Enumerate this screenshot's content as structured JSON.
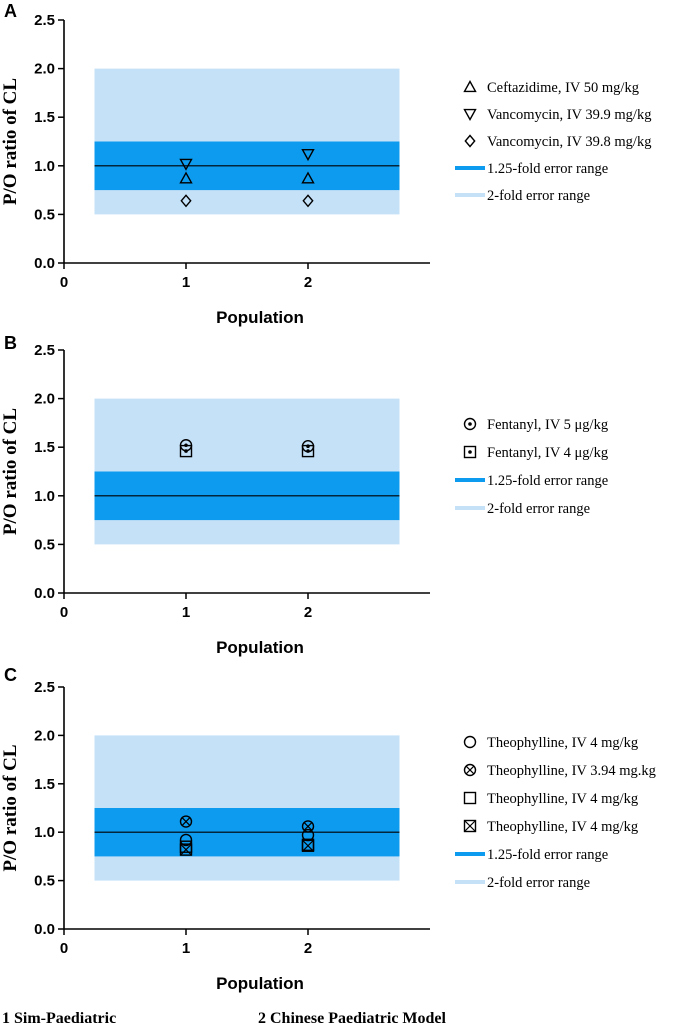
{
  "colors": {
    "two_fold": "#c5e1f8",
    "one25_fold": "#0d9bef",
    "axis": "#000000",
    "ref_line": "#000000"
  },
  "footnote": {
    "item1": "1 Sim-Paediatric",
    "item2": "2 Chinese Paediatric Model"
  },
  "chart_data": [
    {
      "panel": "A",
      "type": "scatter",
      "xlabel": "Population",
      "ylabel": "P/O ratio of CL",
      "xlim": [
        0,
        3
      ],
      "ylim": [
        0,
        2.5
      ],
      "x_ticks": [
        "0",
        "1",
        "2"
      ],
      "y_ticks": [
        "0.0",
        "0.5",
        "1.0",
        "1.5",
        "2.0",
        "2.5"
      ],
      "bands": {
        "two_fold": [
          0.5,
          2.0
        ],
        "one25_fold": [
          0.75,
          1.25
        ],
        "x_span": [
          0.25,
          2.75
        ]
      },
      "reference_line": 1.0,
      "series": [
        {
          "name": "Ceftazidime, IV 50 mg/kg",
          "marker": "triangle-up",
          "x": [
            1,
            2
          ],
          "y": [
            0.87,
            0.87
          ]
        },
        {
          "name": "Vancomycin, IV 39.9 mg/kg",
          "marker": "triangle-down",
          "x": [
            1,
            2
          ],
          "y": [
            1.02,
            1.12
          ]
        },
        {
          "name": "Vancomycin, IV 39.8 mg/kg",
          "marker": "diamond",
          "x": [
            1,
            2
          ],
          "y": [
            0.64,
            0.64
          ]
        }
      ],
      "legend_bands": [
        "1.25-fold error range",
        "2-fold error range"
      ]
    },
    {
      "panel": "B",
      "type": "scatter",
      "xlabel": "Population",
      "ylabel": "P/O ratio of CL",
      "xlim": [
        0,
        3
      ],
      "ylim": [
        0,
        2.5
      ],
      "x_ticks": [
        "0",
        "1",
        "2"
      ],
      "y_ticks": [
        "0.0",
        "0.5",
        "1.0",
        "1.5",
        "2.0",
        "2.5"
      ],
      "bands": {
        "two_fold": [
          0.5,
          2.0
        ],
        "one25_fold": [
          0.75,
          1.25
        ],
        "x_span": [
          0.25,
          2.75
        ]
      },
      "reference_line": 1.0,
      "series": [
        {
          "name": "Fentanyl, IV 5 μg/kg",
          "marker": "circle-dot",
          "x": [
            1,
            2
          ],
          "y": [
            1.52,
            1.51
          ]
        },
        {
          "name": "Fentanyl, IV 4 μg/kg",
          "marker": "square-dot",
          "x": [
            1,
            2
          ],
          "y": [
            1.46,
            1.46
          ]
        }
      ],
      "legend_bands": [
        "1.25-fold error range",
        "2-fold error range"
      ]
    },
    {
      "panel": "C",
      "type": "scatter",
      "xlabel": "Population",
      "ylabel": "P/O ratio of CL",
      "xlim": [
        0,
        3
      ],
      "ylim": [
        0,
        2.5
      ],
      "x_ticks": [
        "0",
        "1",
        "2"
      ],
      "y_ticks": [
        "0.0",
        "0.5",
        "1.0",
        "1.5",
        "2.0",
        "2.5"
      ],
      "bands": {
        "two_fold": [
          0.5,
          2.0
        ],
        "one25_fold": [
          0.75,
          1.25
        ],
        "x_span": [
          0.25,
          2.75
        ]
      },
      "reference_line": 1.0,
      "series": [
        {
          "name": "Theophylline, IV 4 mg/kg",
          "marker": "circle",
          "x": [
            1,
            2
          ],
          "y": [
            0.92,
            0.97
          ]
        },
        {
          "name": "Theophylline, IV 3.94 mg.kg",
          "marker": "circle-x",
          "x": [
            1,
            2
          ],
          "y": [
            1.11,
            1.06
          ]
        },
        {
          "name": "Theophylline, IV 4 mg/kg",
          "marker": "square",
          "x": [
            1,
            2
          ],
          "y": [
            0.85,
            0.87
          ]
        },
        {
          "name": "Theophylline, IV 4 mg/kg",
          "marker": "square-x",
          "x": [
            1,
            2
          ],
          "y": [
            0.82,
            0.86
          ]
        }
      ],
      "legend_bands": [
        "1.25-fold error range",
        "2-fold error range"
      ]
    }
  ]
}
